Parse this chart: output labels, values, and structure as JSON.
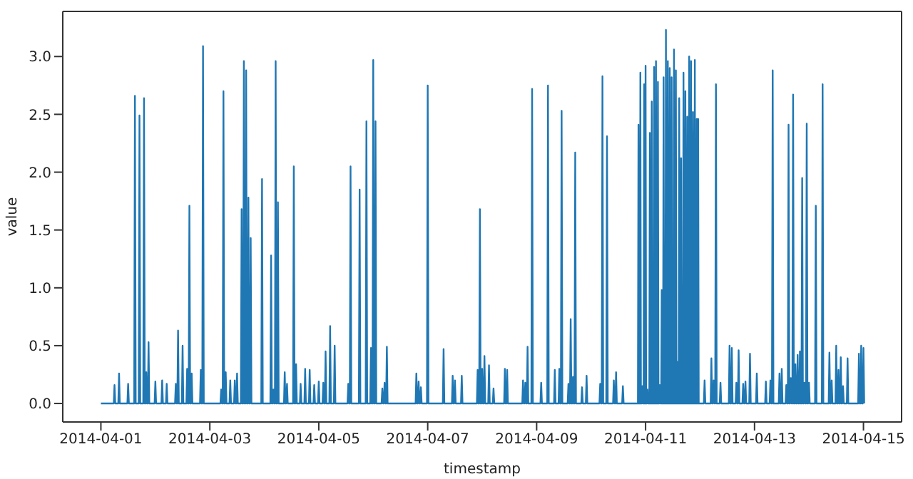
{
  "chart_data": {
    "type": "line",
    "xlabel": "timestamp",
    "ylabel": "value",
    "color": "#1f77b4",
    "xlim": [
      "2014-03-31T07:12",
      "2014-04-15T16:48"
    ],
    "xticks": [
      "2014-04-01",
      "2014-04-03",
      "2014-04-05",
      "2014-04-07",
      "2014-04-09",
      "2014-04-11",
      "2014-04-13",
      "2014-04-15"
    ],
    "ylim": [
      -0.16,
      3.39
    ],
    "yticks": [
      {
        "value": 0,
        "label": "0.0"
      },
      0.5,
      {
        "value": 1,
        "label": "1.0"
      },
      1.5,
      {
        "value": 2,
        "label": "2.0"
      },
      2.5,
      {
        "value": 3,
        "label": "3.0"
      }
    ],
    "x": [
      "2014-04-01T00:00",
      "2014-04-01T05:40",
      "2014-04-01T06:00",
      "2014-04-01T06:20",
      "2014-04-01T07:40",
      "2014-04-01T08:00",
      "2014-04-01T08:20",
      "2014-04-01T11:40",
      "2014-04-01T12:00",
      "2014-04-01T12:20",
      "2014-04-01T14:40",
      "2014-04-01T15:00",
      "2014-04-01T15:20",
      "2014-04-01T16:40",
      "2014-04-01T17:00",
      "2014-04-01T17:20",
      "2014-04-01T18:40",
      "2014-04-01T19:00",
      "2014-04-01T19:20",
      "2014-04-01T19:40",
      "2014-04-01T20:00",
      "2014-04-01T20:20",
      "2014-04-01T20:40",
      "2014-04-01T21:00",
      "2014-04-01T21:20",
      "2014-04-01T23:40",
      "2014-04-02T00:00",
      "2014-04-02T00:20",
      "2014-04-02T02:40",
      "2014-04-02T03:00",
      "2014-04-02T03:20",
      "2014-04-02T04:40",
      "2014-04-02T05:00",
      "2014-04-02T05:20",
      "2014-04-02T08:40",
      "2014-04-02T09:00",
      "2014-04-02T09:20",
      "2014-04-02T09:40",
      "2014-04-02T10:00",
      "2014-04-02T10:20",
      "2014-04-02T11:40",
      "2014-04-02T12:00",
      "2014-04-02T12:20",
      "2014-04-02T13:40",
      "2014-04-02T14:00",
      "2014-04-02T14:20",
      "2014-04-02T14:40",
      "2014-04-02T15:00",
      "2014-04-02T15:20",
      "2014-04-02T15:40",
      "2014-04-02T16:00",
      "2014-04-02T16:20",
      "2014-04-02T19:40",
      "2014-04-02T20:00",
      "2014-04-02T20:20",
      "2014-04-02T20:40",
      "2014-04-02T21:00",
      "2014-04-02T21:20",
      "2014-04-03T04:40",
      "2014-04-03T05:00",
      "2014-04-03T05:20",
      "2014-04-03T05:40",
      "2014-04-03T06:00",
      "2014-04-03T06:20",
      "2014-04-03T06:40",
      "2014-04-03T07:00",
      "2014-04-03T07:20",
      "2014-04-03T08:40",
      "2014-04-03T09:00",
      "2014-04-03T09:20",
      "2014-04-03T10:40",
      "2014-04-03T11:00",
      "2014-04-03T11:20",
      "2014-04-03T11:40",
      "2014-04-03T12:00",
      "2014-04-03T12:20",
      "2014-04-03T13:40",
      "2014-04-03T14:00",
      "2014-04-03T14:20",
      "2014-04-03T14:40",
      "2014-04-03T15:00",
      "2014-04-03T15:20",
      "2014-04-03T15:40",
      "2014-04-03T16:00",
      "2014-04-03T16:20",
      "2014-04-03T16:40",
      "2014-04-03T17:00",
      "2014-04-03T17:20",
      "2014-04-03T17:40",
      "2014-04-03T18:00",
      "2014-04-03T18:20",
      "2014-04-03T22:40",
      "2014-04-03T23:00",
      "2014-04-03T23:20",
      "2014-04-04T02:40",
      "2014-04-04T03:00",
      "2014-04-04T03:20",
      "2014-04-04T03:40",
      "2014-04-04T04:00",
      "2014-04-04T04:20",
      "2014-04-04T04:40",
      "2014-04-04T05:00",
      "2014-04-04T05:20",
      "2014-04-04T05:40",
      "2014-04-04T06:00",
      "2014-04-04T06:20",
      "2014-04-04T08:40",
      "2014-04-04T09:00",
      "2014-04-04T09:20",
      "2014-04-04T09:40",
      "2014-04-04T10:00",
      "2014-04-04T10:20",
      "2014-04-04T12:40",
      "2014-04-04T13:00",
      "2014-04-04T13:20",
      "2014-04-04T13:40",
      "2014-04-04T14:00",
      "2014-04-04T14:20",
      "2014-04-04T15:40",
      "2014-04-04T16:00",
      "2014-04-04T16:20",
      "2014-04-04T17:40",
      "2014-04-04T18:00",
      "2014-04-04T18:20",
      "2014-04-04T19:40",
      "2014-04-04T20:00",
      "2014-04-04T20:20",
      "2014-04-04T21:40",
      "2014-04-04T22:00",
      "2014-04-04T22:20",
      "2014-04-04T23:40",
      "2014-04-05T00:00",
      "2014-04-05T00:20",
      "2014-04-05T01:40",
      "2014-04-05T02:00",
      "2014-04-05T02:20",
      "2014-04-05T02:40",
      "2014-04-05T03:00",
      "2014-04-05T03:20",
      "2014-04-05T04:40",
      "2014-04-05T05:00",
      "2014-04-05T05:20",
      "2014-04-05T06:40",
      "2014-04-05T07:00",
      "2014-04-05T07:20",
      "2014-04-05T12:40",
      "2014-04-05T13:00",
      "2014-04-05T13:20",
      "2014-04-05T13:40",
      "2014-04-05T14:00",
      "2014-04-05T14:20",
      "2014-04-05T17:40",
      "2014-04-05T18:00",
      "2014-04-05T18:20",
      "2014-04-05T20:40",
      "2014-04-05T21:00",
      "2014-04-05T21:20",
      "2014-04-05T22:40",
      "2014-04-05T23:00",
      "2014-04-05T23:20",
      "2014-04-05T23:40",
      "2014-04-06T00:00",
      "2014-04-06T00:20",
      "2014-04-06T00:40",
      "2014-04-06T01:00",
      "2014-04-06T01:20",
      "2014-04-06T03:40",
      "2014-04-06T04:00",
      "2014-04-06T04:20",
      "2014-04-06T04:40",
      "2014-04-06T05:00",
      "2014-04-06T05:20",
      "2014-04-06T05:40",
      "2014-04-06T06:00",
      "2014-04-06T06:20",
      "2014-04-06T18:40",
      "2014-04-06T19:00",
      "2014-04-06T19:20",
      "2014-04-06T19:40",
      "2014-04-06T20:00",
      "2014-04-06T20:20",
      "2014-04-06T20:40",
      "2014-04-06T21:00",
      "2014-04-06T21:20",
      "2014-04-06T23:40",
      "2014-04-07T00:00",
      "2014-04-07T00:20",
      "2014-04-07T06:40",
      "2014-04-07T07:00",
      "2014-04-07T07:20",
      "2014-04-07T10:40",
      "2014-04-07T11:00",
      "2014-04-07T11:20",
      "2014-04-07T11:40",
      "2014-04-07T12:00",
      "2014-04-07T12:20",
      "2014-04-07T14:40",
      "2014-04-07T15:00",
      "2014-04-07T15:20",
      "2014-04-07T21:40",
      "2014-04-07T22:00",
      "2014-04-07T22:20",
      "2014-04-07T22:40",
      "2014-04-07T23:00",
      "2014-04-07T23:20",
      "2014-04-07T23:40",
      "2014-04-08T00:00",
      "2014-04-08T00:20",
      "2014-04-08T00:40",
      "2014-04-08T01:00",
      "2014-04-08T01:20",
      "2014-04-08T02:40",
      "2014-04-08T03:00",
      "2014-04-08T03:20",
      "2014-04-08T04:40",
      "2014-04-08T05:00",
      "2014-04-08T05:20",
      "2014-04-08T09:40",
      "2014-04-08T10:00",
      "2014-04-08T10:20",
      "2014-04-08T10:40",
      "2014-04-08T11:00",
      "2014-04-08T11:20",
      "2014-04-08T17:40",
      "2014-04-08T18:00",
      "2014-04-08T18:20",
      "2014-04-08T18:40",
      "2014-04-08T19:00",
      "2014-04-08T19:20",
      "2014-04-08T19:40",
      "2014-04-08T20:00",
      "2014-04-08T20:20",
      "2014-04-08T21:40",
      "2014-04-08T22:00",
      "2014-04-08T22:20",
      "2014-04-09T01:40",
      "2014-04-09T02:00",
      "2014-04-09T02:20",
      "2014-04-09T04:40",
      "2014-04-09T05:00",
      "2014-04-09T05:20",
      "2014-04-09T07:40",
      "2014-04-09T08:00",
      "2014-04-09T08:20",
      "2014-04-09T09:40",
      "2014-04-09T10:00",
      "2014-04-09T10:20",
      "2014-04-09T10:40",
      "2014-04-09T11:00",
      "2014-04-09T11:20",
      "2014-04-09T13:40",
      "2014-04-09T14:00",
      "2014-04-09T14:20",
      "2014-04-09T14:40",
      "2014-04-09T15:00",
      "2014-04-09T15:20",
      "2014-04-09T15:40",
      "2014-04-09T16:00",
      "2014-04-09T16:20",
      "2014-04-09T16:40",
      "2014-04-09T17:00",
      "2014-04-09T17:20",
      "2014-04-09T19:40",
      "2014-04-09T20:00",
      "2014-04-09T20:20",
      "2014-04-09T21:40",
      "2014-04-09T22:00",
      "2014-04-09T22:20",
      "2014-04-10T03:40",
      "2014-04-10T04:00",
      "2014-04-10T04:20",
      "2014-04-10T04:40",
      "2014-04-10T05:00",
      "2014-04-10T05:20",
      "2014-04-10T06:40",
      "2014-04-10T07:00",
      "2014-04-10T07:20",
      "2014-04-10T09:40",
      "2014-04-10T10:00",
      "2014-04-10T10:20",
      "2014-04-10T10:40",
      "2014-04-10T11:00",
      "2014-04-10T11:20",
      "2014-04-10T13:40",
      "2014-04-10T14:00",
      "2014-04-10T14:20",
      "2014-04-10T20:37",
      "2014-04-10T20:52",
      "2014-04-10T21:07",
      "2014-04-10T21:27",
      "2014-04-10T21:42",
      "2014-04-10T21:57",
      "2014-04-10T22:17",
      "2014-04-10T22:32",
      "2014-04-10T22:47",
      "2014-04-10T23:07",
      "2014-04-10T23:22",
      "2014-04-10T23:37",
      "2014-04-10T23:45",
      "2014-04-11T00:00",
      "2014-04-11T00:15",
      "2014-04-11T00:35",
      "2014-04-11T00:50",
      "2014-04-11T01:05",
      "2014-04-11T01:38",
      "2014-04-11T01:53",
      "2014-04-11T02:08",
      "2014-04-11T02:28",
      "2014-04-11T02:43",
      "2014-04-11T02:58",
      "2014-04-11T03:30",
      "2014-04-11T03:45",
      "2014-04-11T04:00",
      "2014-04-11T04:20",
      "2014-04-11T04:35",
      "2014-04-11T04:50",
      "2014-04-11T05:11",
      "2014-04-11T05:26",
      "2014-04-11T05:41",
      "2014-04-11T06:01",
      "2014-04-11T06:16",
      "2014-04-11T06:31",
      "2014-04-11T06:51",
      "2014-04-11T07:06",
      "2014-04-11T07:21",
      "2014-04-11T07:41",
      "2014-04-11T07:56",
      "2014-04-11T08:11",
      "2014-04-11T08:43",
      "2014-04-11T08:58",
      "2014-04-11T09:13",
      "2014-04-11T09:33",
      "2014-04-11T09:48",
      "2014-04-11T10:03",
      "2014-04-11T10:24",
      "2014-04-11T10:39",
      "2014-04-11T10:54",
      "2014-04-11T11:14",
      "2014-04-11T11:29",
      "2014-04-11T11:44",
      "2014-04-11T12:16",
      "2014-04-11T12:31",
      "2014-04-11T12:46",
      "2014-04-11T13:06",
      "2014-04-11T13:21",
      "2014-04-11T13:36",
      "2014-04-11T13:44",
      "2014-04-11T13:59",
      "2014-04-11T14:14",
      "2014-04-11T14:34",
      "2014-04-11T14:49",
      "2014-04-11T15:04",
      "2014-04-11T15:24",
      "2014-04-11T15:39",
      "2014-04-11T15:54",
      "2014-04-11T16:27",
      "2014-04-11T16:42",
      "2014-04-11T16:57",
      "2014-04-11T17:17",
      "2014-04-11T17:32",
      "2014-04-11T17:47",
      "2014-04-11T18:07",
      "2014-04-11T18:22",
      "2014-04-11T18:37",
      "2014-04-11T18:57",
      "2014-04-11T19:12",
      "2014-04-11T19:27",
      "2014-04-11T19:47",
      "2014-04-11T20:02",
      "2014-04-11T20:17",
      "2014-04-11T20:37",
      "2014-04-11T20:52",
      "2014-04-11T21:07",
      "2014-04-11T21:27",
      "2014-04-11T21:42",
      "2014-04-11T21:57",
      "2014-04-11T22:17",
      "2014-04-11T22:32",
      "2014-04-11T22:47",
      "2014-04-11T22:55",
      "2014-04-11T23:10",
      "2014-04-11T23:25",
      "2014-04-12T01:40",
      "2014-04-12T02:00",
      "2014-04-12T02:20",
      "2014-04-12T04:40",
      "2014-04-12T05:00",
      "2014-04-12T05:20",
      "2014-04-12T05:40",
      "2014-04-12T06:00",
      "2014-04-12T06:20",
      "2014-04-12T06:40",
      "2014-04-12T07:00",
      "2014-04-12T07:20",
      "2014-04-12T08:40",
      "2014-04-12T09:00",
      "2014-04-12T09:20",
      "2014-04-12T12:40",
      "2014-04-12T13:00",
      "2014-04-12T13:20",
      "2014-04-12T13:40",
      "2014-04-12T14:00",
      "2014-04-12T14:20",
      "2014-04-12T15:40",
      "2014-04-12T16:00",
      "2014-04-12T16:20",
      "2014-04-12T16:40",
      "2014-04-12T17:00",
      "2014-04-12T17:20",
      "2014-04-12T18:40",
      "2014-04-12T19:00",
      "2014-04-12T19:20",
      "2014-04-12T19:40",
      "2014-04-12T20:00",
      "2014-04-12T20:20",
      "2014-04-12T21:40",
      "2014-04-12T22:00",
      "2014-04-12T22:20",
      "2014-04-13T00:40",
      "2014-04-13T01:00",
      "2014-04-13T01:20",
      "2014-04-13T04:40",
      "2014-04-13T05:00",
      "2014-04-13T05:20",
      "2014-04-13T06:40",
      "2014-04-13T07:00",
      "2014-04-13T07:20",
      "2014-04-13T07:40",
      "2014-04-13T08:00",
      "2014-04-13T08:20",
      "2014-04-13T10:40",
      "2014-04-13T11:00",
      "2014-04-13T11:20",
      "2014-04-13T11:40",
      "2014-04-13T12:00",
      "2014-04-13T12:20",
      "2014-04-13T13:40",
      "2014-04-13T14:00",
      "2014-04-13T14:20",
      "2014-04-13T14:40",
      "2014-04-13T15:00",
      "2014-04-13T15:20",
      "2014-04-13T15:40",
      "2014-04-13T16:00",
      "2014-04-13T16:20",
      "2014-04-13T16:40",
      "2014-04-13T17:00",
      "2014-04-13T17:20",
      "2014-04-13T17:40",
      "2014-04-13T18:00",
      "2014-04-13T18:20",
      "2014-04-13T18:40",
      "2014-04-13T19:00",
      "2014-04-13T19:20",
      "2014-04-13T19:40",
      "2014-04-13T20:00",
      "2014-04-13T20:20",
      "2014-04-13T20:40",
      "2014-04-13T21:00",
      "2014-04-13T21:20",
      "2014-04-13T21:40",
      "2014-04-13T22:00",
      "2014-04-13T22:20",
      "2014-04-13T22:40",
      "2014-04-13T23:00",
      "2014-04-13T23:20",
      "2014-04-13T23:40",
      "2014-04-14T00:00",
      "2014-04-14T00:20",
      "2014-04-14T02:40",
      "2014-04-14T03:00",
      "2014-04-14T03:20",
      "2014-04-14T05:40",
      "2014-04-14T06:00",
      "2014-04-14T06:20",
      "2014-04-14T08:40",
      "2014-04-14T09:00",
      "2014-04-14T09:20",
      "2014-04-14T09:40",
      "2014-04-14T10:00",
      "2014-04-14T10:20",
      "2014-04-14T11:40",
      "2014-04-14T12:00",
      "2014-04-14T12:20",
      "2014-04-14T12:40",
      "2014-04-14T13:00",
      "2014-04-14T13:20",
      "2014-04-14T13:40",
      "2014-04-14T14:00",
      "2014-04-14T14:20",
      "2014-04-14T14:40",
      "2014-04-14T15:00",
      "2014-04-14T15:20",
      "2014-04-14T16:40",
      "2014-04-14T17:00",
      "2014-04-14T17:20",
      "2014-04-14T21:40",
      "2014-04-14T22:00",
      "2014-04-14T22:20",
      "2014-04-14T22:40",
      "2014-04-14T23:00",
      "2014-04-14T23:20",
      "2014-04-14T23:40",
      "2014-04-15T00:00",
      "2014-04-15T00:20"
    ],
    "values": [
      0,
      0,
      0.16,
      0,
      0,
      0.26,
      0,
      0,
      0.17,
      0,
      0,
      2.66,
      0,
      0,
      2.49,
      0,
      0,
      2.64,
      0,
      0,
      0.27,
      0,
      0,
      0.53,
      0,
      0,
      0.19,
      0,
      0,
      0.2,
      0,
      0,
      0.17,
      0,
      0,
      0.17,
      0,
      0,
      0.63,
      0,
      0,
      0.5,
      0,
      0,
      0.3,
      0,
      0,
      1.71,
      0,
      0,
      0.26,
      0,
      0,
      0.29,
      0,
      0,
      3.09,
      0,
      0,
      0.12,
      0,
      0,
      2.7,
      0,
      0,
      0.27,
      0,
      0,
      0.2,
      0,
      0,
      0.2,
      0,
      0,
      0.26,
      0,
      0,
      1.68,
      0,
      0,
      2.96,
      0,
      0,
      2.88,
      0,
      0,
      1.78,
      0,
      0,
      1.43,
      0,
      0,
      1.94,
      0,
      0,
      1.28,
      0,
      0,
      0.12,
      0,
      0,
      2.96,
      0,
      0,
      1.74,
      0,
      0,
      0.27,
      0,
      0,
      0.17,
      0,
      0,
      2.05,
      0,
      0,
      0.34,
      0,
      0,
      0.17,
      0,
      0,
      0.3,
      0,
      0,
      0.29,
      0,
      0,
      0.16,
      0,
      0,
      0.19,
      0,
      0,
      0.18,
      0,
      0,
      0.45,
      0,
      0,
      0.67,
      0,
      0,
      0.5,
      0,
      0,
      0.17,
      0,
      0,
      2.05,
      0,
      0,
      1.85,
      0,
      0,
      2.44,
      0,
      0,
      0.48,
      0,
      0,
      2.97,
      0,
      0,
      2.44,
      0,
      0,
      0.13,
      0,
      0,
      0.18,
      0,
      0,
      0.49,
      0,
      0,
      0.26,
      0,
      0,
      0.19,
      0,
      0,
      0.14,
      0,
      0,
      2.75,
      0,
      0,
      0.47,
      0,
      0,
      0.24,
      0,
      0,
      0.2,
      0,
      0,
      0.24,
      0,
      0,
      0.29,
      0,
      0,
      1.68,
      0,
      0,
      0.3,
      0,
      0,
      0.41,
      0,
      0,
      0.33,
      0,
      0,
      0.13,
      0,
      0,
      0.3,
      0,
      0,
      0.29,
      0,
      0,
      0.2,
      0,
      0,
      0.18,
      0,
      0,
      0.49,
      0,
      0,
      2.72,
      0,
      0,
      0.18,
      0,
      0,
      2.75,
      0,
      0,
      0.29,
      0,
      0,
      0.3,
      0,
      0,
      2.53,
      0,
      0,
      0.17,
      0,
      0,
      0.73,
      0,
      0,
      0.23,
      0,
      0,
      2.17,
      0,
      0,
      0.14,
      0,
      0,
      0.24,
      0,
      0,
      0.17,
      0,
      0,
      2.83,
      0,
      0,
      2.31,
      0,
      0,
      0.2,
      0,
      0,
      0.27,
      0,
      0,
      0.15,
      0,
      0,
      2.41,
      0,
      0,
      2.86,
      0,
      0,
      0.15,
      0,
      0,
      2.76,
      0,
      0,
      2.92,
      0,
      0,
      0.12,
      0,
      0,
      2.34,
      0,
      0,
      2.61,
      0,
      0,
      2.91,
      0,
      0,
      2.96,
      0,
      0,
      2.78,
      0,
      0,
      0.16,
      0,
      0,
      0.98,
      0,
      0,
      2.82,
      0,
      0,
      3.23,
      0,
      0,
      2.96,
      0,
      0,
      2.9,
      0,
      0,
      2.82,
      0,
      0,
      3.06,
      0,
      0,
      2.88,
      0,
      0,
      0.36,
      0,
      0,
      2.64,
      0,
      0,
      2.12,
      0,
      0,
      2.86,
      0,
      0,
      2.7,
      0,
      0,
      2.48,
      0,
      0,
      3.0,
      0,
      0,
      2.96,
      0,
      0,
      2.52,
      0,
      0,
      2.97,
      0,
      0,
      2.46,
      0,
      0,
      2.46,
      0,
      0,
      0.2,
      0,
      0,
      0.39,
      0,
      0,
      0.2,
      0,
      0,
      2.76,
      0,
      0,
      0.18,
      0,
      0,
      0.5,
      0,
      0,
      0.48,
      0,
      0,
      0.18,
      0,
      0,
      0.46,
      0,
      0,
      0.17,
      0,
      0,
      0.19,
      0,
      0,
      0.43,
      0,
      0,
      0.26,
      0,
      0,
      0.19,
      0,
      0,
      0.2,
      0,
      0,
      2.88,
      0,
      0,
      0.26,
      0,
      0,
      0.3,
      0,
      0,
      0.16,
      0,
      0,
      2.41,
      0,
      0,
      0.22,
      0,
      0,
      2.67,
      0,
      0,
      0.34,
      0,
      0,
      0.42,
      0,
      0,
      0.45,
      0,
      0,
      1.95,
      0,
      0,
      0.18,
      0,
      0,
      2.42,
      0,
      0,
      0.18,
      0,
      0,
      1.71,
      0,
      0,
      2.76,
      0,
      0,
      0.44,
      0,
      0,
      0.2,
      0,
      0,
      0.5,
      0,
      0,
      0.29,
      0,
      0,
      0.4,
      0,
      0,
      0.15,
      0,
      0,
      0.39,
      0,
      0,
      0.43,
      0,
      0,
      0.5,
      0,
      0,
      0.48,
      0
    ]
  }
}
